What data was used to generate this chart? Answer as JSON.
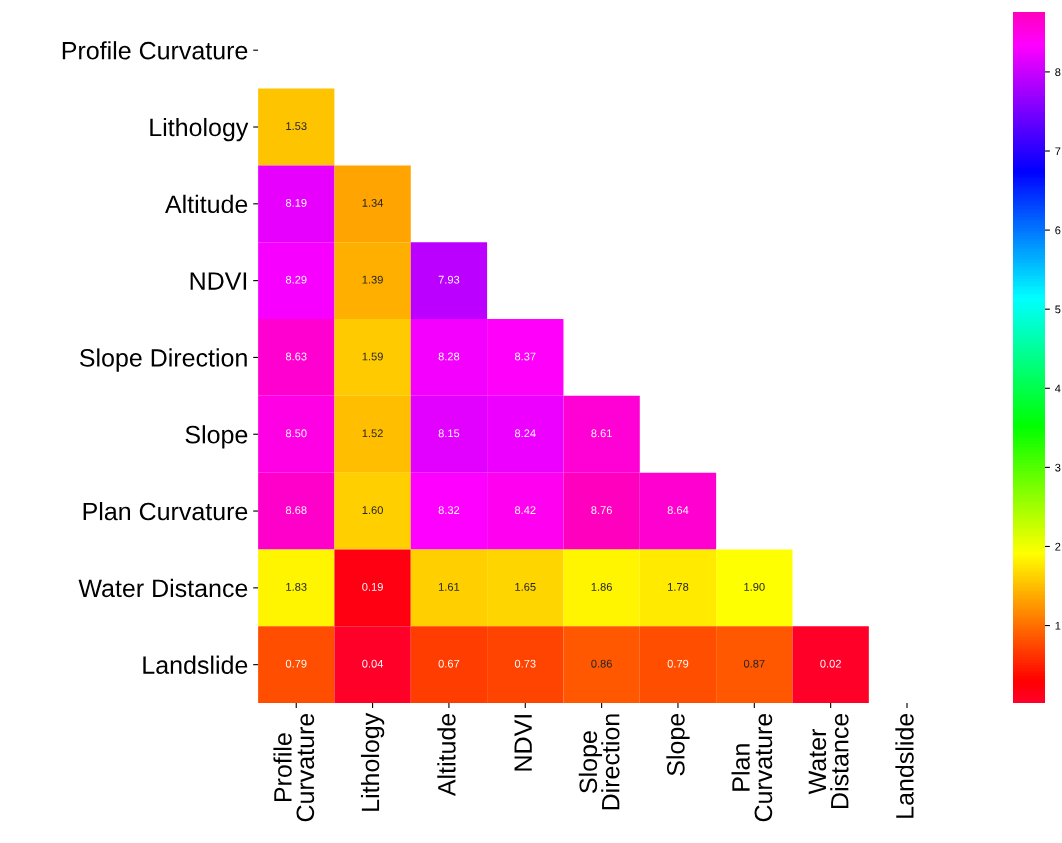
{
  "chart_data": {
    "type": "heatmap",
    "categories": [
      "Profile Curvature",
      "Lithology",
      "Altitude",
      "NDVI",
      "Slope Direction",
      "Slope",
      "Plan Curvature",
      "Water Distance",
      "Landslide"
    ],
    "y_categories": [
      "Profile Curvature",
      "Lithology",
      "Altitude",
      "NDVI",
      "Slope Direction",
      "Slope",
      "Plan Curvature",
      "Water Distance",
      "Landslide"
    ],
    "cells": [
      [
        null,
        null,
        null,
        null,
        null,
        null,
        null,
        null,
        null
      ],
      [
        1.53,
        null,
        null,
        null,
        null,
        null,
        null,
        null,
        null
      ],
      [
        8.19,
        1.34,
        null,
        null,
        null,
        null,
        null,
        null,
        null
      ],
      [
        8.29,
        1.39,
        7.93,
        null,
        null,
        null,
        null,
        null,
        null
      ],
      [
        8.63,
        1.59,
        8.28,
        8.37,
        null,
        null,
        null,
        null,
        null
      ],
      [
        8.5,
        1.52,
        8.15,
        8.24,
        8.61,
        null,
        null,
        null,
        null
      ],
      [
        8.68,
        1.6,
        8.32,
        8.42,
        8.76,
        8.64,
        null,
        null,
        null
      ],
      [
        1.83,
        0.19,
        1.61,
        1.65,
        1.86,
        1.78,
        1.9,
        null,
        null
      ],
      [
        0.79,
        0.04,
        0.67,
        0.73,
        0.86,
        0.79,
        0.87,
        0.02,
        null
      ]
    ],
    "cell_labels": [
      [
        null,
        null,
        null,
        null,
        null,
        null,
        null,
        null,
        null
      ],
      [
        "1.53",
        null,
        null,
        null,
        null,
        null,
        null,
        null,
        null
      ],
      [
        "8.19",
        "1.34",
        null,
        null,
        null,
        null,
        null,
        null,
        null
      ],
      [
        "8.29",
        "1.39",
        "7.93",
        null,
        null,
        null,
        null,
        null,
        null
      ],
      [
        "8.63",
        "1.59",
        "8.28",
        "8.37",
        null,
        null,
        null,
        null,
        null
      ],
      [
        "8.50",
        "1.52",
        "8.15",
        "8.24",
        "8.61",
        null,
        null,
        null,
        null
      ],
      [
        "8.68",
        "1.60",
        "8.32",
        "8.42",
        "8.76",
        "8.64",
        null,
        null,
        null
      ],
      [
        "1.83",
        "0.19",
        "1.61",
        "1.65",
        "1.86",
        "1.78",
        "1.90",
        null,
        null
      ],
      [
        "0.79",
        "0.04",
        "0.67",
        "0.73",
        "0.86",
        "0.79",
        "0.87",
        "0.02",
        null
      ]
    ],
    "clim": [
      0.02,
      8.76
    ],
    "cticks": [
      1,
      2,
      3,
      4,
      5,
      6,
      7,
      8
    ],
    "data_labels": true
  }
}
